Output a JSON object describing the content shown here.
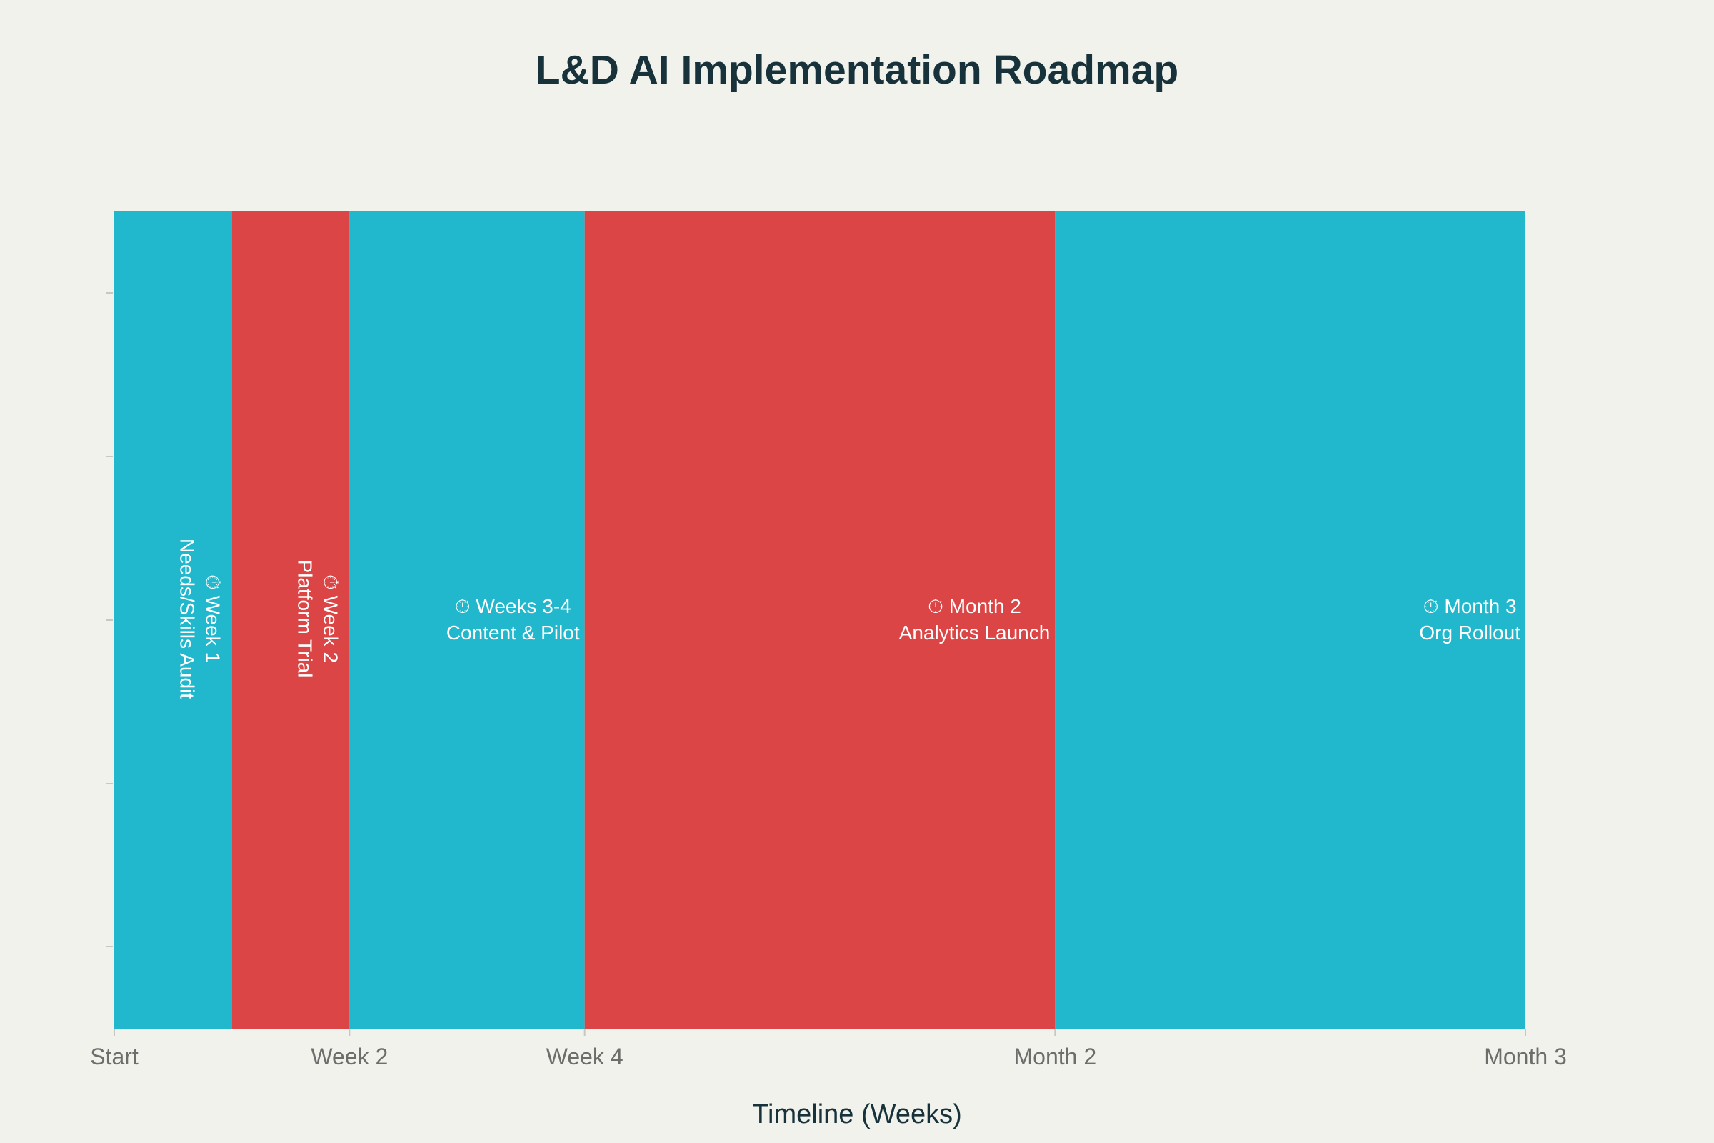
{
  "chart_data": {
    "type": "bar",
    "orientation": "horizontal-timeline",
    "title": "L&D AI Implementation Roadmap",
    "xlabel": "Timeline (Weeks)",
    "ylabel": "",
    "xlim": [
      0,
      12
    ],
    "x_ticks": [
      {
        "value": 0,
        "label": "Start"
      },
      {
        "value": 2,
        "label": "Week 2"
      },
      {
        "value": 4,
        "label": "Week 4"
      },
      {
        "value": 8,
        "label": "Month 2"
      },
      {
        "value": 12,
        "label": "Month 3"
      }
    ],
    "segments": [
      {
        "start": 0,
        "end": 1,
        "line1": "⏱ Week 1",
        "line2": "Needs/Skills Audit",
        "color": "#21b8cd",
        "rotated": true
      },
      {
        "start": 1,
        "end": 2,
        "line1": "⏱ Week 2",
        "line2": "Platform Trial",
        "color": "#db4545",
        "rotated": true
      },
      {
        "start": 2,
        "end": 4,
        "line1": "⏱ Weeks 3-4",
        "line2": "Content & Pilot",
        "color": "#21b8cd",
        "rotated": false
      },
      {
        "start": 4,
        "end": 8,
        "line1": "⏱ Month 2",
        "line2": "Analytics Launch",
        "color": "#db4545",
        "rotated": false
      },
      {
        "start": 8,
        "end": 12,
        "line1": "⏱ Month 3",
        "line2": "Org Rollout",
        "color": "#21b8cd",
        "rotated": false
      }
    ],
    "grid": false,
    "legend": "none"
  }
}
